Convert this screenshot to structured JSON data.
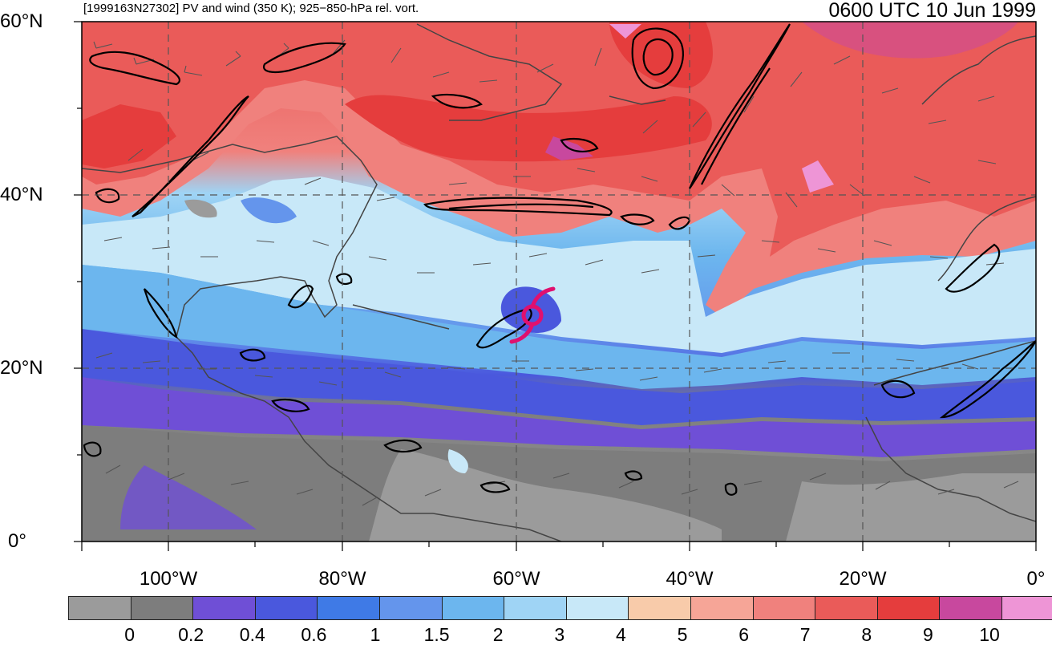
{
  "header": {
    "left_title": "[1999163N27302] PV and wind (350 K); 925−850-hPa rel. vort.",
    "right_title": "0600 UTC 10 Jun 1999"
  },
  "axes": {
    "lat_labels": [
      "60°N",
      "40°N",
      "20°N",
      "0°"
    ],
    "lon_labels": [
      "100°W",
      "80°W",
      "60°W",
      "40°W",
      "20°W",
      "0°"
    ]
  },
  "colorbar": {
    "labels": [
      "0",
      "0.2",
      "0.4",
      "0.6",
      "1",
      "1.5",
      "2",
      "3",
      "4",
      "5",
      "6",
      "7",
      "8",
      "9",
      "10"
    ],
    "colors": [
      "#9b9b9b",
      "#7d7d7d",
      "#6f4fd6",
      "#4a58dd",
      "#3f7ae6",
      "#6495ec",
      "#6cb6ee",
      "#9fd4f5",
      "#c8e8f8",
      "#f8cbaa",
      "#f6a597",
      "#f0817d",
      "#ea5b59",
      "#e53d3d",
      "#c8489e",
      "#ee95d6"
    ]
  },
  "colors": {
    "storm_symbol": "#e0106e",
    "grid": "#555555",
    "coast": "#444444",
    "contour": "#000000"
  }
}
